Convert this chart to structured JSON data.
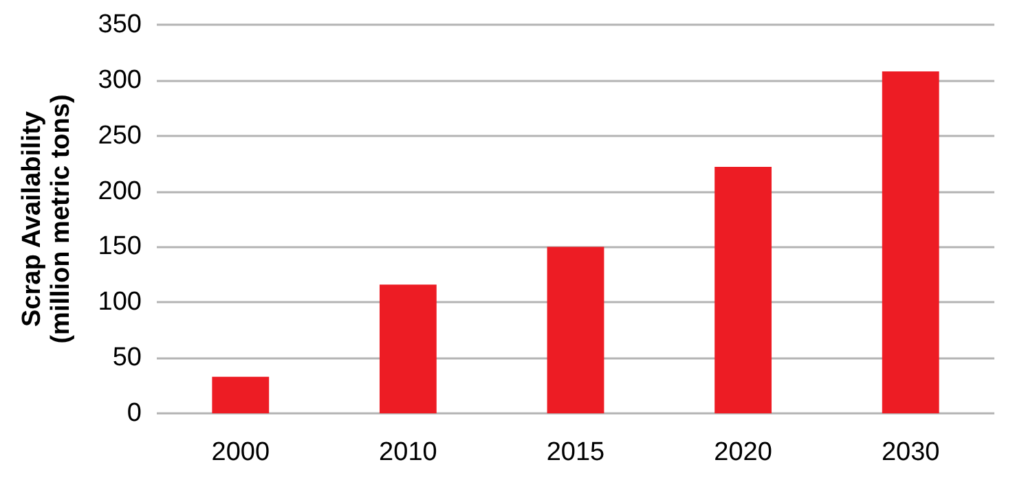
{
  "chart_data": {
    "type": "bar",
    "ylabel": "Scrap Availability\n(million metric tons)",
    "categories": [
      "2000",
      "2010",
      "2015",
      "2020",
      "2030"
    ],
    "values": [
      33,
      116,
      150,
      222,
      308
    ],
    "color": "#ed1c24",
    "ylim": [
      0,
      350
    ],
    "yticks": [
      0,
      50,
      100,
      150,
      200,
      250,
      300,
      350
    ],
    "grid": "y"
  }
}
